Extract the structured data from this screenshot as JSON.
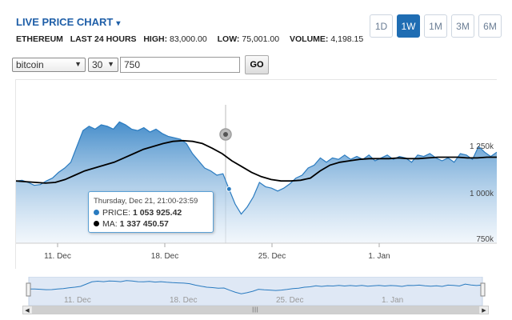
{
  "header": {
    "title": "LIVE PRICE CHART",
    "caret": "▾"
  },
  "stats": {
    "coin": "ETHEREUM",
    "period": "LAST 24 HOURS",
    "high_label": "HIGH:",
    "high_value": "83,000.00",
    "low_label": "LOW:",
    "low_value": "75,001.00",
    "volume_label": "VOLUME:",
    "volume_value": "4,198.15"
  },
  "ranges": [
    "1D",
    "1W",
    "1M",
    "3M",
    "6M"
  ],
  "active_range": "1W",
  "controls": {
    "coin_select": "bitcoin",
    "days_select": "30",
    "amount_value": "750",
    "go_label": "GO"
  },
  "tooltip": {
    "datetime": "Thursday, Dec 21, 21:00-23:59",
    "price_label": "PRICE:",
    "price_value": "1 053 925.42",
    "ma_label": "MA:",
    "ma_value": "1 337 450.57"
  },
  "colors": {
    "accent": "#1f6db3",
    "price_line": "#2a7bc0",
    "ma_line": "#000000",
    "area_top": "#3d88c8",
    "area_bottom": "#eaf2fa"
  },
  "chart_data": {
    "type": "area",
    "x_tick_labels": [
      "11. Dec",
      "18. Dec",
      "25. Dec",
      "1. Jan"
    ],
    "y_tick_labels": [
      "1 250k",
      "1 000k",
      "750k"
    ],
    "ylim": [
      700000,
      1700000
    ],
    "series": [
      {
        "name": "PRICE",
        "values": [
          1110000,
          1115000,
          1100000,
          1080000,
          1085000,
          1110000,
          1130000,
          1170000,
          1200000,
          1240000,
          1350000,
          1460000,
          1490000,
          1470000,
          1500000,
          1490000,
          1470000,
          1520000,
          1500000,
          1470000,
          1460000,
          1480000,
          1450000,
          1470000,
          1440000,
          1420000,
          1410000,
          1400000,
          1370000,
          1300000,
          1250000,
          1200000,
          1180000,
          1150000,
          1160000,
          1053925,
          950000,
          880000,
          930000,
          1000000,
          1100000,
          1070000,
          1060000,
          1040000,
          1060000,
          1090000,
          1130000,
          1150000,
          1200000,
          1220000,
          1270000,
          1240000,
          1270000,
          1260000,
          1290000,
          1260000,
          1280000,
          1260000,
          1290000,
          1250000,
          1270000,
          1290000,
          1260000,
          1280000,
          1270000,
          1240000,
          1290000,
          1280000,
          1300000,
          1270000,
          1250000,
          1270000,
          1240000,
          1300000,
          1290000,
          1260000,
          1350000,
          1310000,
          1280000,
          1310000
        ],
        "min_value": 880000,
        "max_value": 1520000
      },
      {
        "name": "MA",
        "values": [
          1110000,
          1105000,
          1100000,
          1095000,
          1100000,
          1120000,
          1150000,
          1180000,
          1200000,
          1220000,
          1240000,
          1270000,
          1300000,
          1330000,
          1350000,
          1370000,
          1385000,
          1390000,
          1385000,
          1370000,
          1337450,
          1300000,
          1250000,
          1210000,
          1170000,
          1140000,
          1120000,
          1110000,
          1110000,
          1115000,
          1130000,
          1180000,
          1220000,
          1240000,
          1250000,
          1260000,
          1265000,
          1265000,
          1265000,
          1270000,
          1265000,
          1265000,
          1270000,
          1275000,
          1275000,
          1275000,
          1270000,
          1270000,
          1275000,
          1275000
        ],
        "min_value": 1095000,
        "max_value": 1390000
      }
    ],
    "hover_index": 35,
    "grid": false
  },
  "navigator": {
    "x_tick_labels": [
      "11. Dec",
      "18. Dec",
      "25. Dec",
      "1. Jan"
    ]
  }
}
